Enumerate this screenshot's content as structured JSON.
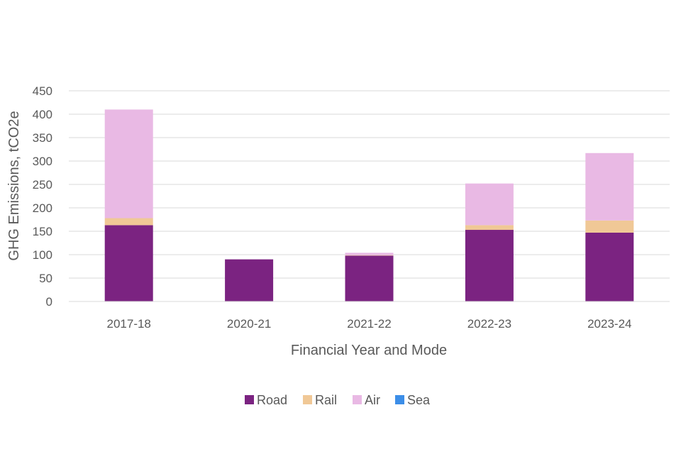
{
  "chart_data": {
    "type": "bar",
    "stacked": true,
    "title": "",
    "xlabel": "Financial Year and Mode",
    "ylabel": "GHG Emissions, tCO2e",
    "ylim": [
      0,
      450
    ],
    "yticks": [
      0,
      50,
      100,
      150,
      200,
      250,
      300,
      350,
      400,
      450
    ],
    "grid": true,
    "legend_position": "bottom",
    "categories": [
      "2017-18",
      "2020-21",
      "2021-22",
      "2022-23",
      "2023-24"
    ],
    "series": [
      {
        "name": "Road",
        "color": "#7b2381",
        "values": [
          163,
          90,
          98,
          153,
          147
        ]
      },
      {
        "name": "Rail",
        "color": "#f0c896",
        "values": [
          15,
          0,
          1,
          10,
          26
        ]
      },
      {
        "name": "Air",
        "color": "#e9b9e4",
        "values": [
          232,
          0,
          5,
          89,
          144
        ]
      },
      {
        "name": "Sea",
        "color": "#3c8ee8",
        "values": [
          0,
          0,
          0,
          0,
          0
        ]
      }
    ]
  }
}
